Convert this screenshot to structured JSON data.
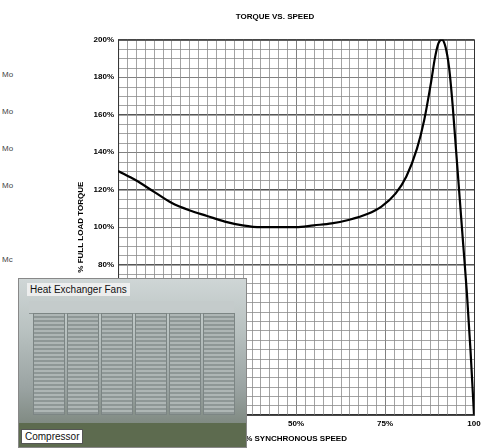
{
  "chart_data": {
    "type": "line",
    "title": "TORQUE VS. SPEED",
    "x_label": "% SYNCHRONOUS SPEED",
    "y_label": "% FULL LOAD TORQUE",
    "x": [
      0,
      5,
      10,
      15,
      20,
      25,
      30,
      35,
      40,
      45,
      50,
      55,
      60,
      65,
      70,
      74,
      78,
      81,
      84,
      86,
      88,
      89,
      90,
      91,
      92,
      93,
      94,
      95,
      96,
      97,
      98,
      99,
      100
    ],
    "values": [
      130,
      125,
      119,
      113,
      109,
      106,
      103,
      101,
      100,
      100,
      100,
      101,
      102,
      104,
      107,
      111,
      118,
      127,
      142,
      157,
      178,
      190,
      198,
      200,
      196,
      185,
      165,
      140,
      115,
      90,
      65,
      35,
      0
    ],
    "color": "#000000",
    "xlim": [
      0,
      100
    ],
    "xticks": [
      {
        "value": 50,
        "label": "50%"
      },
      {
        "value": 75,
        "label": "75%"
      },
      {
        "value": 100,
        "label": "100"
      }
    ],
    "ylim": [
      0,
      200
    ],
    "yticks": [
      {
        "value": 80,
        "label": "80%"
      },
      {
        "value": 100,
        "label": "100%"
      },
      {
        "value": 120,
        "label": "120%"
      },
      {
        "value": 140,
        "label": "140%"
      },
      {
        "value": 160,
        "label": "160%"
      },
      {
        "value": 180,
        "label": "180%"
      },
      {
        "value": 200,
        "label": "200%"
      }
    ],
    "grid": true
  },
  "inset": {
    "labels": [
      "Heat Exchanger Fans",
      "Compressor"
    ]
  },
  "side_text": [
    "Mo",
    "Mo",
    "Mo",
    "Mo",
    "Mc"
  ]
}
